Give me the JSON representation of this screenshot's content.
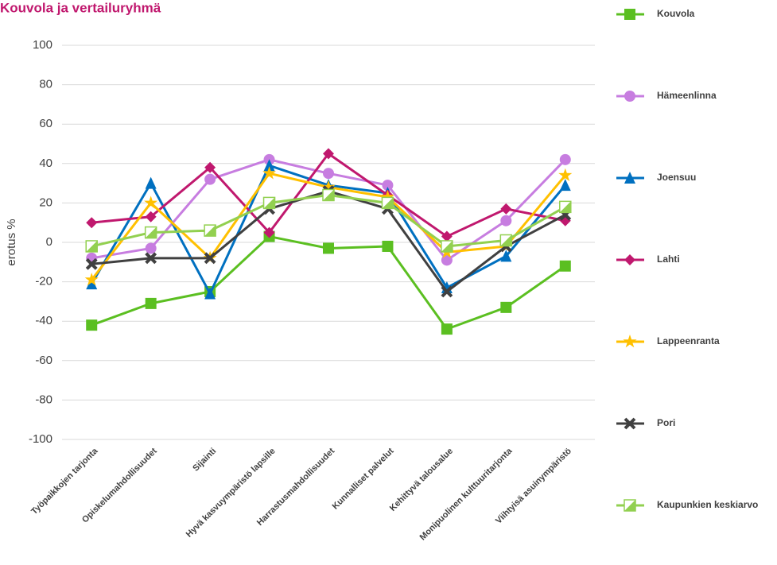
{
  "chart_data": {
    "type": "line",
    "title": "Kouvola ja vertailuryhmä",
    "y_label": "erotus %",
    "categories": [
      "Työpaikkojen tarjonta",
      "Opiskelumahdollisuudet",
      "Sijainti",
      "Hyvä kasvuympäristö lapsille",
      "Harrastusmahdollisuudet",
      "Kunnalliset palvelut",
      "Kehittyvä talousalue",
      "Monipuolinen kulttuuritarjonta",
      "Viihtyisä asuinympäristö"
    ],
    "series": [
      {
        "name": "Kouvola",
        "color": "#5bbf21",
        "marker": "square",
        "values": [
          -42,
          -31,
          -25,
          3,
          -3,
          -2,
          -44,
          -33,
          -12
        ]
      },
      {
        "name": "Hämeenlinna",
        "color": "#c77de0",
        "marker": "circle",
        "values": [
          -8,
          -3,
          32,
          42,
          35,
          29,
          -9,
          11,
          42
        ]
      },
      {
        "name": "Joensuu",
        "color": "#0070c0",
        "marker": "triangle",
        "values": [
          -21,
          30,
          -26,
          39,
          29,
          25,
          -23,
          -7,
          29
        ]
      },
      {
        "name": "Lahti",
        "color": "#c0186e",
        "marker": "diamond",
        "values": [
          10,
          13,
          38,
          5,
          45,
          24,
          3,
          17,
          11
        ]
      },
      {
        "name": "Lappeenranta",
        "color": "#ffc000",
        "marker": "star",
        "values": [
          -19,
          20,
          -8,
          35,
          28,
          23,
          -5,
          -2,
          34
        ]
      },
      {
        "name": "Pori",
        "color": "#404040",
        "marker": "x",
        "values": [
          -11,
          -8,
          -8,
          17,
          26,
          17,
          -25,
          -2,
          14
        ]
      },
      {
        "name": "Kaupunkien keskiarvo",
        "color": "#92d050",
        "marker": "half-square",
        "values": [
          -2,
          5,
          6,
          20,
          24,
          20,
          -2,
          1,
          18
        ]
      }
    ],
    "ylim": [
      -100,
      100
    ],
    "yticks": [
      -100,
      -80,
      -60,
      -40,
      -20,
      0,
      20,
      40,
      60,
      80,
      100
    ],
    "grid": true,
    "legend": "right"
  }
}
